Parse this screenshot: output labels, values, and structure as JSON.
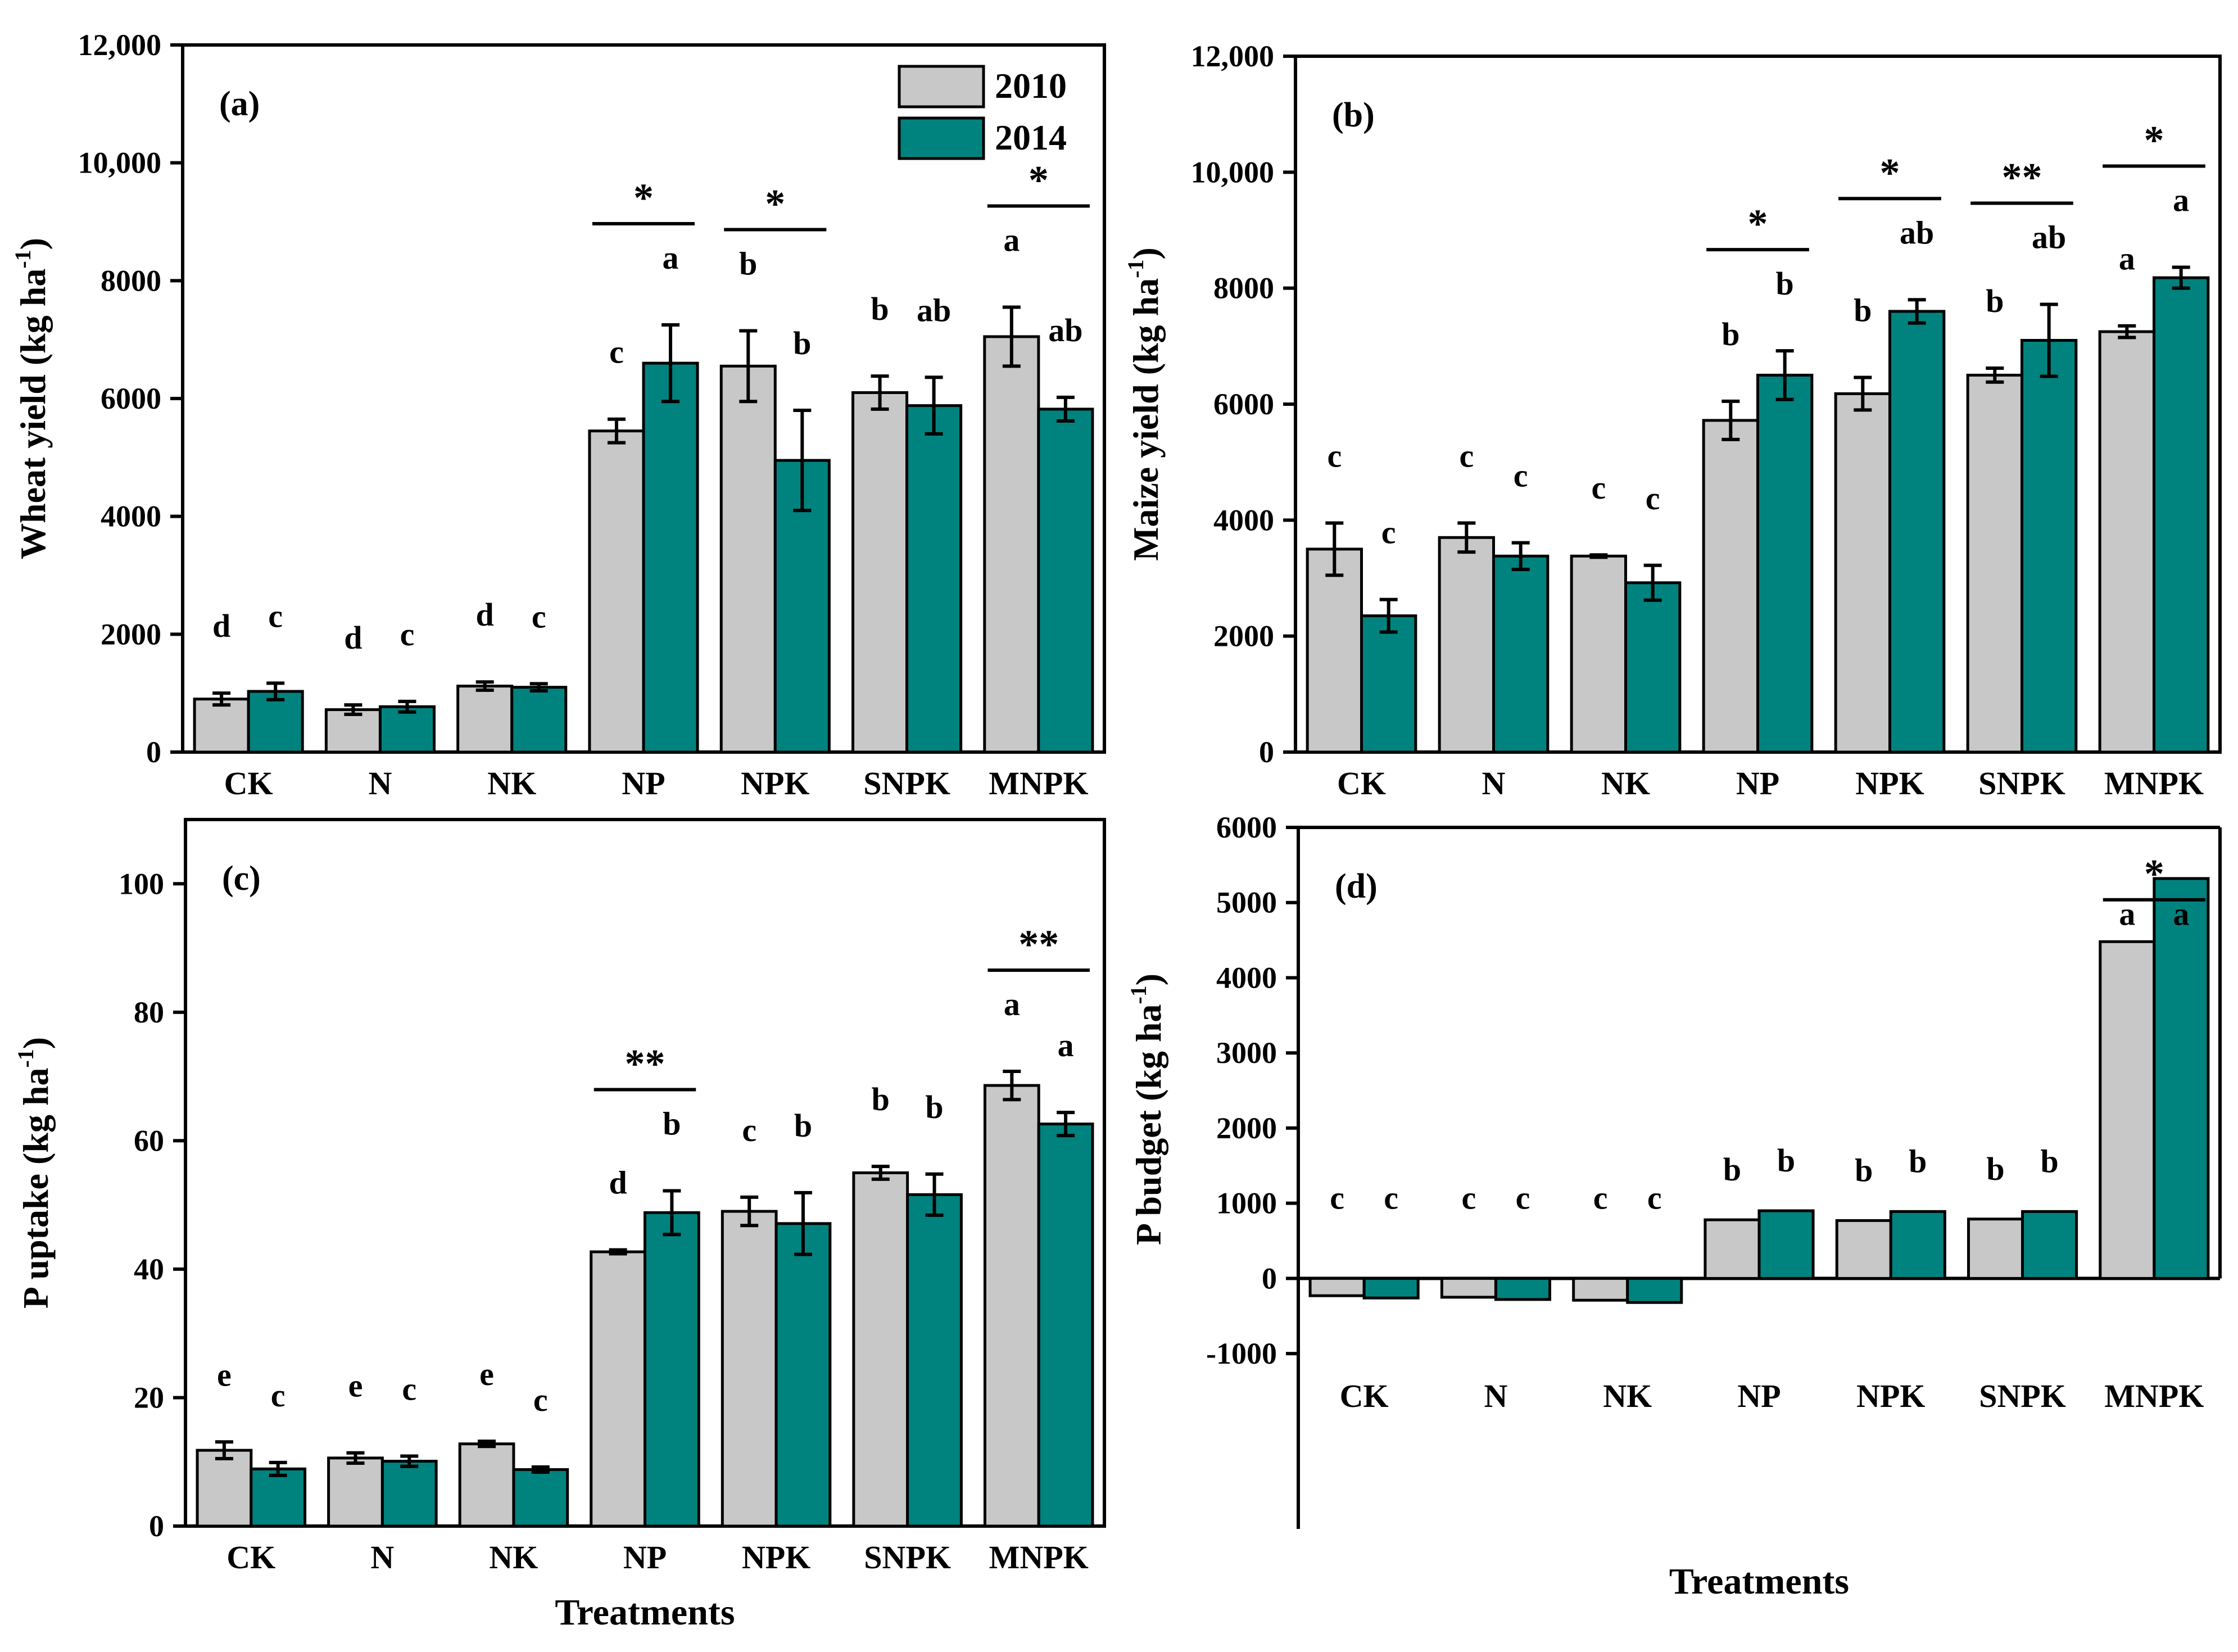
{
  "colors": {
    "series_2010": "#c8c8c8",
    "series_2014": "#00837f",
    "axis": "#000000"
  },
  "legend": {
    "entries": [
      "2010",
      "2014"
    ]
  },
  "x_axis_title": "Treatments",
  "chart_data": [
    {
      "type": "bar",
      "panel_label": "(a)",
      "ylabel": "Wheat yield (kg ha-1)",
      "ylabel_main": "Wheat yield (kg ha",
      "ylabel_sup": "-1",
      "ylabel_close": ")",
      "ylim": [
        0,
        12000
      ],
      "yticks": [
        0,
        2000,
        4000,
        6000,
        8000,
        10000,
        12000
      ],
      "ytick_labels": [
        "0",
        "2000",
        "4000",
        "6000",
        "8000",
        "10,000",
        "12,000"
      ],
      "categories": [
        "CK",
        "N",
        "NK",
        "NP",
        "NPK",
        "SNPK",
        "MNPK"
      ],
      "series": [
        {
          "name": "2010",
          "values": [
            900,
            720,
            1120,
            5450,
            6550,
            6100,
            7050
          ],
          "errors": [
            100,
            80,
            70,
            200,
            600,
            280,
            500
          ],
          "letters": [
            "d",
            "d",
            "d",
            "c",
            "b",
            "b",
            "a"
          ]
        },
        {
          "name": "2014",
          "values": [
            1030,
            770,
            1100,
            6600,
            4950,
            5880,
            5820
          ],
          "errors": [
            140,
            90,
            60,
            650,
            850,
            480,
            200
          ],
          "letters": [
            "c",
            "c",
            "c",
            "a",
            "b",
            "ab",
            "ab"
          ]
        }
      ],
      "significance": [
        {
          "category": "NP",
          "mark": "*"
        },
        {
          "category": "NPK",
          "mark": "*"
        },
        {
          "category": "MNPK",
          "mark": "*"
        }
      ],
      "show_legend": true,
      "show_xlabel": false,
      "grid": false
    },
    {
      "type": "bar",
      "panel_label": "(b)",
      "ylabel": "Maize yield (kg ha-1)",
      "ylabel_main": "Maize yield (kg ha",
      "ylabel_sup": "-1",
      "ylabel_close": ")",
      "ylim": [
        0,
        12000
      ],
      "yticks": [
        0,
        2000,
        4000,
        6000,
        8000,
        10000,
        12000
      ],
      "ytick_labels": [
        "0",
        "2000",
        "4000",
        "6000",
        "8000",
        "10,000",
        "12,000"
      ],
      "categories": [
        "CK",
        "N",
        "NK",
        "NP",
        "NPK",
        "SNPK",
        "MNPK"
      ],
      "series": [
        {
          "name": "2010",
          "values": [
            3500,
            3700,
            3380,
            5720,
            6180,
            6500,
            7250
          ],
          "errors": [
            450,
            250,
            20,
            330,
            280,
            120,
            100
          ],
          "letters": [
            "c",
            "c",
            "c",
            "b",
            "b",
            "b",
            "a"
          ]
        },
        {
          "name": "2014",
          "values": [
            2350,
            3380,
            2920,
            6500,
            7600,
            7100,
            8180
          ],
          "errors": [
            280,
            230,
            300,
            420,
            200,
            620,
            180
          ],
          "letters": [
            "c",
            "c",
            "c",
            "b",
            "ab",
            "ab",
            "a"
          ]
        }
      ],
      "significance": [
        {
          "category": "NP",
          "mark": "*"
        },
        {
          "category": "NPK",
          "mark": "*"
        },
        {
          "category": "SNPK",
          "mark": "**"
        },
        {
          "category": "MNPK",
          "mark": "*"
        }
      ],
      "show_legend": false,
      "show_xlabel": false,
      "grid": false
    },
    {
      "type": "bar",
      "panel_label": "(c)",
      "ylabel": "P uptake (kg ha-1)",
      "ylabel_main": "P uptake (kg ha",
      "ylabel_sup": "-1",
      "ylabel_close": ")",
      "ylim": [
        0,
        110
      ],
      "yticks": [
        0,
        20,
        40,
        60,
        80,
        100
      ],
      "ytick_labels": [
        "0",
        "20",
        "40",
        "60",
        "80",
        "100"
      ],
      "categories": [
        "CK",
        "N",
        "NK",
        "NP",
        "NPK",
        "SNPK",
        "MNPK"
      ],
      "series": [
        {
          "name": "2010",
          "values": [
            11.8,
            10.6,
            12.8,
            42.7,
            49.0,
            55.0,
            68.6
          ],
          "errors": [
            1.3,
            0.8,
            0.4,
            0.3,
            2.2,
            1.0,
            2.2
          ],
          "letters": [
            "e",
            "e",
            "e",
            "d",
            "c",
            "b",
            "a"
          ]
        },
        {
          "name": "2014",
          "values": [
            8.9,
            10.1,
            8.8,
            48.8,
            47.1,
            51.6,
            62.6
          ],
          "errors": [
            1.0,
            0.8,
            0.4,
            3.4,
            4.8,
            3.2,
            1.8
          ],
          "letters": [
            "c",
            "c",
            "c",
            "b",
            "b",
            "b",
            "a"
          ]
        }
      ],
      "significance": [
        {
          "category": "NP",
          "mark": "**"
        },
        {
          "category": "MNPK",
          "mark": "**"
        }
      ],
      "show_legend": false,
      "show_xlabel": true,
      "grid": false
    },
    {
      "type": "bar",
      "panel_label": "(d)",
      "ylabel": "P budget (kg ha-1)",
      "ylabel_main": "P budget (kg ha",
      "ylabel_sup": "-1",
      "ylabel_close": ")",
      "ylim": [
        -1500,
        6000
      ],
      "yticks": [
        -1000,
        0,
        1000,
        2000,
        3000,
        4000,
        5000,
        6000
      ],
      "ytick_labels": [
        "-1000",
        "0",
        "1000",
        "2000",
        "3000",
        "4000",
        "5000",
        "6000"
      ],
      "categories": [
        "CK",
        "N",
        "NK",
        "NP",
        "NPK",
        "SNPK",
        "MNPK"
      ],
      "series": [
        {
          "name": "2010",
          "values": [
            -230,
            -250,
            -290,
            780,
            770,
            790,
            4480
          ],
          "letters": [
            "c",
            "c",
            "c",
            "b",
            "b",
            "b",
            "a"
          ]
        },
        {
          "name": "2014",
          "values": [
            -260,
            -280,
            -320,
            900,
            890,
            890,
            5320
          ],
          "letters": [
            "c",
            "c",
            "c",
            "b",
            "b",
            "b",
            "a"
          ]
        }
      ],
      "significance": [
        {
          "category": "MNPK",
          "mark": "*"
        }
      ],
      "show_legend": false,
      "show_xlabel": true,
      "grid": false
    }
  ]
}
